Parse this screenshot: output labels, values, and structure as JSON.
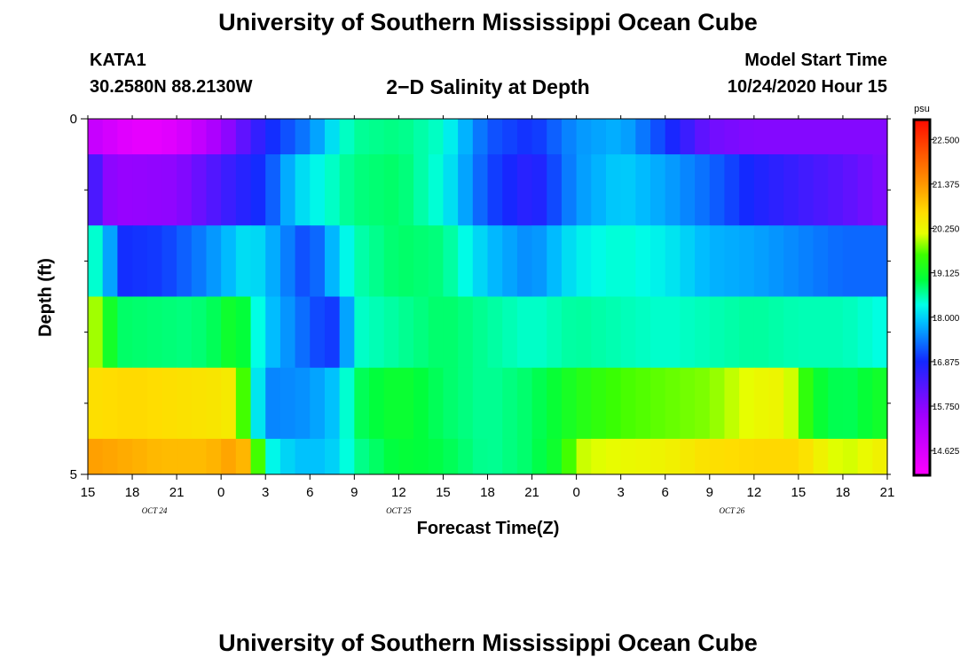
{
  "header": {
    "title": "University of Southern Mississippi Ocean Cube",
    "station": "KATA1",
    "coords": "30.2580N 88.2130W",
    "plot_title": "2−D Salinity at Depth",
    "model_start_label": "Model Start Time",
    "model_start": "10/24/2020 Hour 15"
  },
  "footer": {
    "title": "University of Southern Mississippi Ocean Cube"
  },
  "chart_data": {
    "type": "heatmap",
    "title": "2−D Salinity at Depth",
    "xlabel": "Forecast Time(Z)",
    "ylabel": "Depth (ft)",
    "ylim": [
      0,
      5
    ],
    "y_ticks": [
      "0",
      "5"
    ],
    "x_ticks": [
      "15",
      "18",
      "21",
      "0",
      "3",
      "6",
      "9",
      "12",
      "15",
      "18",
      "21",
      "0",
      "3",
      "6",
      "9",
      "12",
      "15",
      "18",
      "21"
    ],
    "date_labels": [
      {
        "label": "OCT 24",
        "hour_index": 4.5
      },
      {
        "label": "OCT 25",
        "hour_index": 21
      },
      {
        "label": "OCT 26",
        "hour_index": 43.5
      }
    ],
    "hours_total": 54,
    "colorbar": {
      "unit": "psu",
      "min": 14.0,
      "max": 23.0,
      "ticks": [
        "22.500",
        "21.375",
        "20.250",
        "19.125",
        "18.000",
        "16.875",
        "15.750",
        "14.625"
      ],
      "tick_values": [
        22.5,
        21.375,
        20.25,
        19.125,
        18.0,
        16.875,
        15.75,
        14.625
      ]
    },
    "layers": [
      {
        "depth_range": [
          0.0,
          0.5
        ],
        "hours": [
          0,
          3,
          5,
          7,
          9,
          12,
          15,
          17,
          18,
          21,
          24,
          27,
          30,
          33,
          36,
          39,
          42,
          45,
          48,
          51,
          54
        ],
        "values": [
          15.0,
          14.4,
          14.4,
          14.8,
          15.5,
          16.8,
          17.5,
          18.3,
          18.6,
          18.7,
          18.4,
          17.2,
          16.9,
          17.6,
          17.8,
          17.0,
          16.0,
          15.8,
          15.8,
          15.8,
          15.8
        ]
      },
      {
        "depth_range": [
          0.5,
          1.5
        ],
        "hours": [
          0,
          1,
          2,
          6,
          9,
          12,
          14,
          18,
          21,
          24,
          27,
          30,
          33,
          36,
          39,
          42,
          45,
          48,
          51,
          54
        ],
        "values": [
          16.9,
          15.8,
          15.6,
          15.7,
          16.4,
          17.0,
          18.0,
          18.7,
          18.8,
          18.3,
          17.1,
          16.6,
          17.6,
          18.0,
          17.7,
          17.3,
          16.8,
          16.5,
          16.2,
          15.8
        ]
      },
      {
        "depth_range": [
          1.5,
          2.5
        ],
        "hours": [
          0,
          1,
          2,
          5,
          8,
          11,
          15,
          16,
          18,
          21,
          24,
          27,
          30,
          33,
          36,
          39,
          42,
          45,
          48,
          51,
          54
        ],
        "values": [
          18.3,
          18.5,
          16.9,
          17.0,
          17.5,
          18.2,
          17.0,
          17.6,
          18.5,
          18.8,
          18.7,
          17.9,
          17.5,
          18.2,
          18.4,
          18.2,
          17.8,
          17.7,
          17.5,
          17.3,
          17.3
        ]
      },
      {
        "depth_range": [
          2.5,
          3.5
        ],
        "hours": [
          0,
          1,
          2,
          7,
          9,
          10,
          12,
          15,
          16,
          17,
          18,
          21,
          24,
          27,
          30,
          33,
          36,
          39,
          42,
          45,
          48,
          51,
          54
        ],
        "values": [
          20.3,
          19.5,
          18.8,
          18.7,
          18.9,
          19.3,
          18.0,
          17.2,
          17.0,
          17.0,
          18.4,
          18.6,
          18.8,
          18.6,
          18.4,
          18.6,
          18.5,
          18.4,
          18.5,
          18.6,
          18.5,
          18.5,
          18.3
        ]
      },
      {
        "depth_range": [
          3.5,
          4.5
        ],
        "hours": [
          0,
          3,
          6,
          9,
          10,
          11,
          12,
          13,
          15,
          17,
          18,
          21,
          24,
          27,
          30,
          32,
          33,
          36,
          39,
          42,
          45,
          47,
          48,
          49,
          51,
          54
        ],
        "values": [
          20.6,
          20.7,
          20.6,
          20.5,
          20.4,
          18.8,
          17.5,
          17.5,
          17.6,
          18.0,
          18.8,
          19.1,
          18.8,
          18.6,
          18.8,
          19.1,
          19.3,
          19.6,
          19.7,
          19.8,
          20.2,
          20.3,
          19.8,
          19.1,
          18.8,
          19.2
        ]
      },
      {
        "depth_range": [
          4.5,
          5.0
        ],
        "hours": [
          0,
          2,
          5,
          8,
          10,
          11,
          11.5,
          12,
          14,
          16,
          17,
          18,
          21,
          24,
          27,
          30,
          32,
          33,
          36,
          39,
          42,
          45,
          48,
          50,
          51,
          54
        ],
        "values": [
          21.3,
          21.2,
          21.0,
          21.0,
          21.3,
          20.8,
          19.6,
          18.4,
          17.9,
          17.9,
          18.1,
          18.6,
          19.0,
          18.9,
          18.6,
          18.8,
          19.2,
          20.0,
          20.2,
          20.3,
          20.6,
          20.7,
          20.7,
          20.2,
          20.0,
          20.4
        ]
      }
    ]
  }
}
